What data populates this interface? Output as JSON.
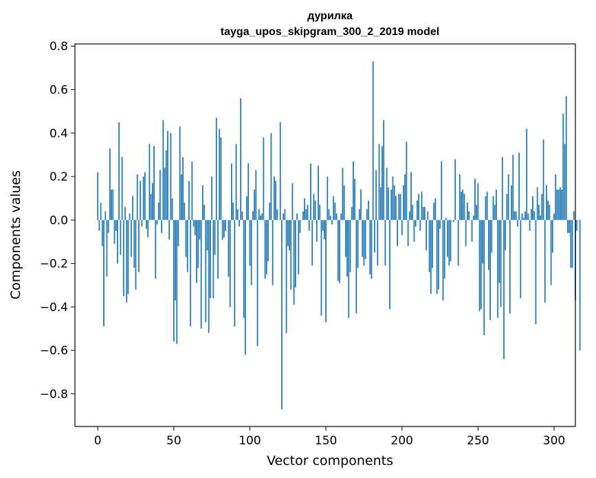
{
  "chart_data": {
    "type": "bar",
    "title_lines": [
      "дурилка",
      "tayga_upos_skipgram_300_2_2019 model"
    ],
    "xlabel": "Vector components",
    "ylabel": "Components values",
    "xlim": [
      -15,
      314
    ],
    "ylim": [
      -0.95,
      0.81
    ],
    "xticks": [
      0,
      50,
      100,
      150,
      200,
      250,
      300
    ],
    "yticks": [
      -0.8,
      -0.6,
      -0.4,
      -0.2,
      0.0,
      0.2,
      0.4,
      0.6,
      0.8
    ],
    "ytick_labels": [
      "−0.8",
      "−0.6",
      "−0.4",
      "−0.2",
      "0.0",
      "0.2",
      "0.4",
      "0.6",
      "0.8"
    ],
    "grid": false,
    "legend": "none",
    "bar_color": "#1f77b4",
    "values": [
      0.22,
      -0.05,
      0.08,
      -0.12,
      -0.49,
      0.04,
      -0.26,
      -0.06,
      0.33,
      0.14,
      0.14,
      -0.11,
      -0.05,
      -0.2,
      0.45,
      -0.16,
      0.29,
      -0.35,
      0.06,
      -0.38,
      -0.34,
      0.03,
      -0.17,
      0.11,
      -0.22,
      -0.32,
      0.21,
      -0.24,
      0.18,
      -0.03,
      0.2,
      0.22,
      -0.04,
      -0.08,
      0.35,
      0.12,
      0.17,
      0.34,
      -0.27,
      -0.02,
      0.08,
      0.23,
      -0.06,
      0.46,
      0.24,
      0.32,
      0.41,
      -0.09,
      0.4,
      0.1,
      -0.56,
      -0.37,
      -0.57,
      -0.12,
      0.43,
      0.21,
      0.29,
      0.08,
      -0.17,
      -0.24,
      0.18,
      -0.49,
      0.27,
      -0.03,
      -0.07,
      -0.29,
      -0.22,
      -0.09,
      -0.5,
      0.16,
      0.07,
      -0.47,
      -0.14,
      -0.52,
      -0.36,
      0.2,
      -0.36,
      -0.16,
      0.47,
      -0.27,
      0.42,
      0.38,
      -0.09,
      -0.08,
      -0.05,
      0.0,
      -0.26,
      -0.4,
      0.26,
      0.08,
      -0.49,
      0.35,
      0.05,
      -0.03,
      0.56,
      0.04,
      -0.45,
      -0.62,
      0.11,
      0.26,
      -0.21,
      -0.3,
      0.04,
      0.14,
      0.23,
      -0.58,
      0.05,
      0.02,
      0.03,
      0.38,
      -0.27,
      -0.25,
      -0.19,
      0.08,
      0.4,
      -0.3,
      0.2,
      0.18,
      0.05,
      0.0,
      0.45,
      -0.87,
      0.03,
      0.05,
      -0.52,
      -0.12,
      -0.14,
      -0.32,
      0.17,
      -0.39,
      -0.31,
      0.03,
      -0.25,
      -0.06,
      0.0,
      0.04,
      0.1,
      0.05,
      0.07,
      -0.05,
      0.26,
      -0.21,
      0.12,
      0.09,
      -0.1,
      0.25,
      0.07,
      -0.44,
      -0.05,
      -0.09,
      -0.47,
      0.2,
      0.05,
      0.02,
      -0.02,
      0.11,
      0.08,
      0.03,
      -0.28,
      -0.29,
      0.03,
      0.24,
      0.16,
      -0.17,
      -0.26,
      -0.45,
      -0.24,
      0.06,
      0.27,
      0.19,
      -0.43,
      -0.22,
      0.05,
      0.14,
      -0.17,
      -0.21,
      -0.18,
      0.05,
      0.09,
      -0.25,
      -0.27,
      0.73,
      -0.15,
      0.23,
      -0.21,
      0.35,
      0.15,
      0.34,
      0.46,
      -0.21,
      0.24,
      0.15,
      -0.41,
      0.14,
      0.2,
      0.16,
      0.11,
      -0.12,
      0.12,
      0.12,
      -0.07,
      0.16,
      0.21,
      0.36,
      -0.12,
      0.04,
      0.22,
      0.07,
      -0.1,
      -0.03,
      0.09,
      0.12,
      -0.05,
      0.13,
      0.06,
      0.06,
      -0.14,
      0.04,
      -0.24,
      -0.34,
      -0.22,
      0.08,
      0.1,
      -0.34,
      -0.32,
      -0.04,
      0.27,
      -0.37,
      -0.27,
      0.01,
      -0.17,
      -0.21,
      -0.19,
      0.0,
      -0.01,
      0.28,
      0.0,
      -0.21,
      0.21,
      0.13,
      0.14,
      0.12,
      -0.12,
      0.08,
      0.04,
      0.0,
      -0.1,
      0.02,
      0.19,
      0.07,
      0.17,
      -0.42,
      -0.41,
      -0.2,
      -0.53,
      0.11,
      0.13,
      -0.23,
      -0.46,
      -0.15,
      0.11,
      0.07,
      0.14,
      -0.45,
      -0.29,
      -0.4,
      0.29,
      -0.64,
      -0.14,
      0.12,
      0.21,
      -0.43,
      0.16,
      0.3,
      0.04,
      0.04,
      -0.03,
      0.31,
      -0.36,
      0.03,
      0.01,
      0.04,
      0.42,
      0.03,
      -0.05,
      0.05,
      0.11,
      0.04,
      -0.48,
      0.15,
      0.07,
      0.02,
      0.12,
      0.37,
      -0.38,
      0.16,
      0.09,
      0.07,
      -0.3,
      -0.15,
      0.03,
      0.21,
      0.14,
      0.14,
      0.15,
      0.14,
      0.49,
      0.35,
      0.57,
      -0.06,
      -0.06,
      -0.22,
      -0.22,
      0.04,
      -0.37,
      -0.05,
      0.0,
      -0.6
    ]
  }
}
